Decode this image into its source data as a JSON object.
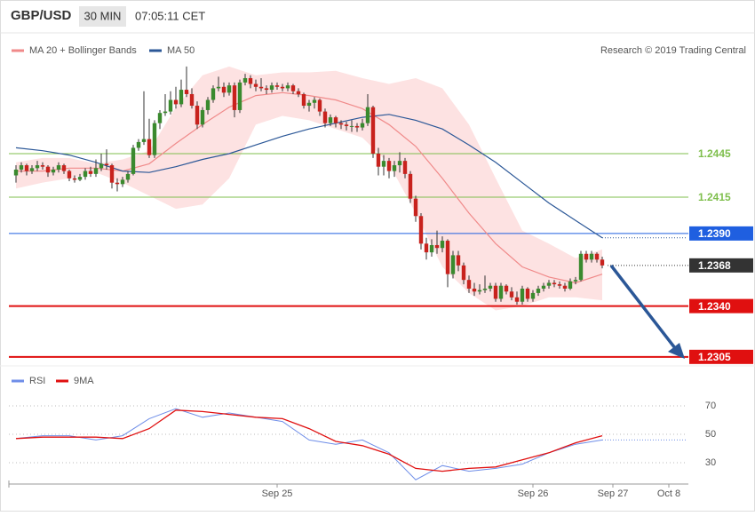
{
  "header": {
    "symbol": "GBP/USD",
    "timeframe": "30 MIN",
    "time": "07:05:11 CET",
    "credit": "Research © 2019 Trading Central"
  },
  "chart_data": {
    "type": "candlestick",
    "xlim": [
      -1,
      126
    ],
    "ylim": [
      1.23,
      1.2508
    ],
    "xticks": [
      {
        "value": 49,
        "label": "Sep 25"
      },
      {
        "value": 97,
        "label": "Sep 26"
      },
      {
        "value": 112,
        "label": "Sep 27"
      },
      {
        "value": 122.5,
        "label": "Oct 8"
      }
    ],
    "up_color": "#3a8a2e",
    "down_color": "#c8221d",
    "ohlc": [
      [
        1.243,
        1.2437,
        1.2425,
        1.2434
      ],
      [
        1.2434,
        1.2439,
        1.2432,
        1.2437
      ],
      [
        1.2437,
        1.2438,
        1.243,
        1.2433
      ],
      [
        1.2433,
        1.2437,
        1.2431,
        1.2435
      ],
      [
        1.2435,
        1.244,
        1.2433,
        1.2437
      ],
      [
        1.2437,
        1.2439,
        1.2434,
        1.2436
      ],
      [
        1.2436,
        1.2437,
        1.2429,
        1.2432
      ],
      [
        1.2432,
        1.2436,
        1.243,
        1.2434
      ],
      [
        1.2434,
        1.2439,
        1.2432,
        1.2437
      ],
      [
        1.2437,
        1.2438,
        1.2431,
        1.2433
      ],
      [
        1.2433,
        1.2434,
        1.2426,
        1.2428
      ],
      [
        1.2428,
        1.243,
        1.2425,
        1.2427
      ],
      [
        1.2427,
        1.2431,
        1.2426,
        1.2429
      ],
      [
        1.2429,
        1.2435,
        1.2427,
        1.2433
      ],
      [
        1.2433,
        1.2436,
        1.2429,
        1.2431
      ],
      [
        1.2431,
        1.2441,
        1.2429,
        1.2435
      ],
      [
        1.2435,
        1.2445,
        1.2433,
        1.2438
      ],
      [
        1.2438,
        1.2448,
        1.2434,
        1.2437
      ],
      [
        1.2437,
        1.2438,
        1.2421,
        1.2425
      ],
      [
        1.2425,
        1.2428,
        1.2419,
        1.2424
      ],
      [
        1.2424,
        1.2429,
        1.2422,
        1.2427
      ],
      [
        1.2427,
        1.2433,
        1.2425,
        1.2431
      ],
      [
        1.2431,
        1.2451,
        1.243,
        1.2449
      ],
      [
        1.2449,
        1.2455,
        1.2447,
        1.2453
      ],
      [
        1.2453,
        1.2488,
        1.2451,
        1.2455
      ],
      [
        1.2455,
        1.2469,
        1.2442,
        1.2444
      ],
      [
        1.2444,
        1.2468,
        1.2442,
        1.2466
      ],
      [
        1.2466,
        1.2475,
        1.2462,
        1.2473
      ],
      [
        1.2473,
        1.2486,
        1.2471,
        1.2474
      ],
      [
        1.2474,
        1.2488,
        1.2472,
        1.2482
      ],
      [
        1.2482,
        1.2491,
        1.2476,
        1.2479
      ],
      [
        1.2479,
        1.2496,
        1.2477,
        1.2489
      ],
      [
        1.2489,
        1.2505,
        1.2484,
        1.2486
      ],
      [
        1.2486,
        1.249,
        1.2476,
        1.2478
      ],
      [
        1.2478,
        1.2481,
        1.2462,
        1.2465
      ],
      [
        1.2465,
        1.2477,
        1.2463,
        1.2475
      ],
      [
        1.2475,
        1.2484,
        1.2472,
        1.2482
      ],
      [
        1.2482,
        1.2492,
        1.248,
        1.249
      ],
      [
        1.249,
        1.2498,
        1.2488,
        1.2491
      ],
      [
        1.2491,
        1.2494,
        1.2484,
        1.2487
      ],
      [
        1.2487,
        1.2494,
        1.2485,
        1.2492
      ],
      [
        1.2492,
        1.2494,
        1.247,
        1.2475
      ],
      [
        1.2475,
        1.2496,
        1.2473,
        1.2494
      ],
      [
        1.2494,
        1.25,
        1.2492,
        1.2497
      ],
      [
        1.2497,
        1.2499,
        1.249,
        1.2493
      ],
      [
        1.2493,
        1.2496,
        1.2488,
        1.2491
      ],
      [
        1.2491,
        1.2497,
        1.2488,
        1.249
      ],
      [
        1.249,
        1.2492,
        1.2486,
        1.2489
      ],
      [
        1.2489,
        1.2494,
        1.2487,
        1.2492
      ],
      [
        1.2492,
        1.2494,
        1.2489,
        1.2491
      ],
      [
        1.2491,
        1.2493,
        1.2488,
        1.249
      ],
      [
        1.249,
        1.2494,
        1.2488,
        1.2492
      ],
      [
        1.2492,
        1.2493,
        1.2486,
        1.2488
      ],
      [
        1.2488,
        1.249,
        1.2484,
        1.2486
      ],
      [
        1.2486,
        1.2487,
        1.2476,
        1.2478
      ],
      [
        1.2478,
        1.2482,
        1.2474,
        1.248
      ],
      [
        1.248,
        1.2484,
        1.2476,
        1.2482
      ],
      [
        1.2482,
        1.2483,
        1.2471,
        1.2474
      ],
      [
        1.2474,
        1.2476,
        1.2463,
        1.2466
      ],
      [
        1.2466,
        1.2472,
        1.2464,
        1.247
      ],
      [
        1.247,
        1.2471,
        1.2463,
        1.2466
      ],
      [
        1.2466,
        1.2468,
        1.2462,
        1.2465
      ],
      [
        1.2465,
        1.2467,
        1.2461,
        1.2464
      ],
      [
        1.2464,
        1.2468,
        1.246,
        1.2464
      ],
      [
        1.2464,
        1.2466,
        1.246,
        1.2463
      ],
      [
        1.2463,
        1.2469,
        1.2461,
        1.2466
      ],
      [
        1.2466,
        1.2486,
        1.2464,
        1.2477
      ],
      [
        1.2477,
        1.2478,
        1.2442,
        1.2445
      ],
      [
        1.2445,
        1.2449,
        1.243,
        1.2436
      ],
      [
        1.2436,
        1.2444,
        1.243,
        1.244
      ],
      [
        1.244,
        1.2442,
        1.2428,
        1.2433
      ],
      [
        1.2433,
        1.244,
        1.2429,
        1.2437
      ],
      [
        1.2437,
        1.2446,
        1.2432,
        1.244
      ],
      [
        1.244,
        1.2442,
        1.2428,
        1.2431
      ],
      [
        1.2431,
        1.2433,
        1.2411,
        1.2414
      ],
      [
        1.2414,
        1.2416,
        1.2398,
        1.2402
      ],
      [
        1.2402,
        1.2404,
        1.2379,
        1.2383
      ],
      [
        1.2383,
        1.2387,
        1.2372,
        1.2377
      ],
      [
        1.2377,
        1.2386,
        1.2374,
        1.2382
      ],
      [
        1.2382,
        1.2392,
        1.2376,
        1.238
      ],
      [
        1.238,
        1.2388,
        1.2377,
        1.2385
      ],
      [
        1.2385,
        1.2386,
        1.2353,
        1.2362
      ],
      [
        1.2362,
        1.2378,
        1.2359,
        1.2375
      ],
      [
        1.2375,
        1.2378,
        1.2364,
        1.2368
      ],
      [
        1.2368,
        1.237,
        1.2355,
        1.2358
      ],
      [
        1.2358,
        1.2361,
        1.2349,
        1.2352
      ],
      [
        1.2352,
        1.2356,
        1.2347,
        1.235
      ],
      [
        1.235,
        1.2355,
        1.2348,
        1.2351
      ],
      [
        1.2351,
        1.2361,
        1.2349,
        1.2352
      ],
      [
        1.2352,
        1.2356,
        1.235,
        1.2354
      ],
      [
        1.2354,
        1.2356,
        1.2343,
        1.2345
      ],
      [
        1.2345,
        1.2356,
        1.2343,
        1.2354
      ],
      [
        1.2354,
        1.2355,
        1.2348,
        1.235
      ],
      [
        1.235,
        1.2353,
        1.2344,
        1.2346
      ],
      [
        1.2346,
        1.235,
        1.2341,
        1.2343
      ],
      [
        1.2343,
        1.2354,
        1.2341,
        1.2352
      ],
      [
        1.2352,
        1.2353,
        1.2343,
        1.2345
      ],
      [
        1.2345,
        1.2351,
        1.2343,
        1.2349
      ],
      [
        1.2349,
        1.2354,
        1.2347,
        1.2352
      ],
      [
        1.2352,
        1.2356,
        1.235,
        1.2354
      ],
      [
        1.2354,
        1.2358,
        1.2352,
        1.2356
      ],
      [
        1.2356,
        1.2358,
        1.2353,
        1.2355
      ],
      [
        1.2355,
        1.2357,
        1.2352,
        1.2354
      ],
      [
        1.2354,
        1.2356,
        1.235,
        1.2352
      ],
      [
        1.2352,
        1.2359,
        1.2351,
        1.2357
      ],
      [
        1.2357,
        1.236,
        1.2355,
        1.2358
      ],
      [
        1.2358,
        1.2378,
        1.2357,
        1.2376
      ],
      [
        1.2376,
        1.2378,
        1.237,
        1.2372
      ],
      [
        1.2372,
        1.2378,
        1.237,
        1.2376
      ],
      [
        1.2376,
        1.2377,
        1.237,
        1.2372
      ],
      [
        1.2372,
        1.2374,
        1.2366,
        1.2368
      ]
    ],
    "bollinger": {
      "name": "MA 20 + Bollinger Bands",
      "color": "#f08a8a",
      "fill": "#fde2e2",
      "x": [
        0,
        5,
        10,
        15,
        20,
        25,
        30,
        35,
        40,
        45,
        50,
        55,
        60,
        65,
        70,
        75,
        80,
        85,
        90,
        95,
        100,
        105,
        110
      ],
      "ma": [
        1.2433,
        1.2433,
        1.2435,
        1.2435,
        1.2433,
        1.2438,
        1.2452,
        1.2465,
        1.2477,
        1.2485,
        1.2487,
        1.2485,
        1.2482,
        1.2476,
        1.2465,
        1.245,
        1.2428,
        1.2404,
        1.2383,
        1.2367,
        1.236,
        1.2356,
        1.2362
      ],
      "upper": [
        1.2439,
        1.2442,
        1.2442,
        1.2438,
        1.2441,
        1.2447,
        1.2477,
        1.2499,
        1.2505,
        1.2499,
        1.2501,
        1.2501,
        1.2502,
        1.2497,
        1.2493,
        1.2497,
        1.249,
        1.2465,
        1.2428,
        1.2392,
        1.2383,
        1.2373,
        1.2379
      ],
      "lower": [
        1.2421,
        1.2425,
        1.2428,
        1.2432,
        1.2425,
        1.2416,
        1.2407,
        1.241,
        1.2428,
        1.2465,
        1.2471,
        1.2468,
        1.2462,
        1.2456,
        1.2438,
        1.2404,
        1.2367,
        1.2349,
        1.2337,
        1.234,
        1.2346,
        1.2346,
        1.2344
      ]
    },
    "ma50": {
      "name": "MA 50",
      "color": "#2b5797",
      "x": [
        0,
        5,
        10,
        15,
        20,
        25,
        30,
        35,
        40,
        45,
        50,
        55,
        60,
        65,
        70,
        75,
        80,
        85,
        90,
        95,
        100,
        105,
        110
      ],
      "values": [
        1.2449,
        1.2447,
        1.2444,
        1.2439,
        1.2433,
        1.2432,
        1.2436,
        1.2441,
        1.2445,
        1.2451,
        1.2457,
        1.2462,
        1.2466,
        1.247,
        1.2472,
        1.2468,
        1.2462,
        1.2451,
        1.2439,
        1.2425,
        1.2411,
        1.2399,
        1.2387
      ]
    },
    "levels": [
      {
        "value": 1.2445,
        "color": "#7fbf4d",
        "box": false
      },
      {
        "value": 1.2415,
        "color": "#7fbf4d",
        "box": false
      },
      {
        "value": 1.239,
        "label": "1.2390",
        "color": "#1f5fe0",
        "box": true
      },
      {
        "value": 1.2368,
        "color": "#333333",
        "box": true,
        "dotted": true
      },
      {
        "value": 1.234,
        "label": "1.2340",
        "color": "#e01010",
        "box": true
      },
      {
        "value": 1.2305,
        "color": "#e01010",
        "box": true
      }
    ],
    "rsi": {
      "ylim": [
        15,
        80
      ],
      "yticks": [
        30,
        50,
        70
      ],
      "x": [
        0,
        5,
        10,
        15,
        20,
        25,
        30,
        35,
        40,
        45,
        50,
        55,
        60,
        65,
        70,
        75,
        80,
        85,
        90,
        95,
        100,
        105,
        110
      ],
      "series": [
        {
          "name": "RSI",
          "color": "#6f8ee8",
          "values": [
            47,
            49,
            49,
            46,
            49,
            61,
            68,
            62,
            65,
            62,
            59,
            46,
            43,
            46,
            37,
            18,
            28,
            24,
            26,
            29,
            37,
            43,
            46
          ]
        },
        {
          "name": "9MA",
          "color": "#e01010",
          "values": [
            47,
            48,
            48,
            48,
            47,
            54,
            67,
            66,
            64,
            62,
            61,
            54,
            45,
            42,
            36,
            26,
            24,
            26,
            27,
            32,
            37,
            44,
            49
          ]
        }
      ]
    }
  }
}
